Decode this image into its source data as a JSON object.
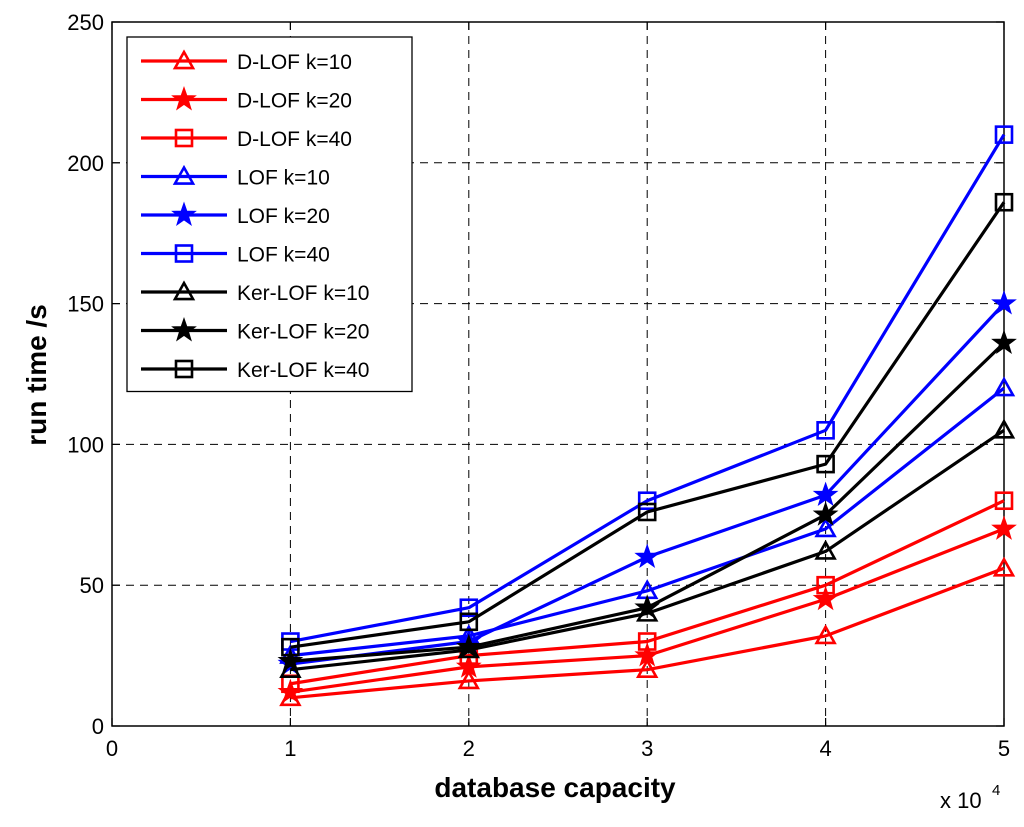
{
  "chart_data": {
    "type": "line",
    "xlabel": "database capacity",
    "ylabel": "run time /s",
    "x_multiplier_text": "x 10",
    "x_multiplier_exp": "4",
    "xlim": [
      0,
      5
    ],
    "ylim": [
      0,
      250
    ],
    "xticks": [
      0,
      1,
      2,
      3,
      4,
      5
    ],
    "yticks": [
      0,
      50,
      100,
      150,
      200,
      250
    ],
    "grid": true,
    "legend_position": "top-left",
    "x": [
      1,
      2,
      3,
      4,
      5
    ],
    "series": [
      {
        "name": "D-LOF k=10",
        "color": "#ff0000",
        "marker": "triangle",
        "values": [
          10,
          16,
          20,
          32,
          56
        ]
      },
      {
        "name": "D-LOF k=20",
        "color": "#ff0000",
        "marker": "star",
        "values": [
          12,
          21,
          25,
          45,
          70
        ]
      },
      {
        "name": "D-LOF k=40",
        "color": "#ff0000",
        "marker": "square",
        "values": [
          15,
          25,
          30,
          50,
          80
        ]
      },
      {
        "name": "LOF k=10",
        "color": "#0000ff",
        "marker": "triangle",
        "values": [
          25,
          32,
          48,
          70,
          120
        ]
      },
      {
        "name": "LOF k=20",
        "color": "#0000ff",
        "marker": "star",
        "values": [
          22,
          30,
          60,
          82,
          150
        ]
      },
      {
        "name": "LOF k=40",
        "color": "#0000ff",
        "marker": "square",
        "values": [
          30,
          42,
          80,
          105,
          210
        ]
      },
      {
        "name": "Ker-LOF k=10",
        "color": "#000000",
        "marker": "triangle",
        "values": [
          20,
          27,
          40,
          62,
          105
        ]
      },
      {
        "name": "Ker-LOF k=20",
        "color": "#000000",
        "marker": "star",
        "values": [
          23,
          28,
          42,
          75,
          136
        ]
      },
      {
        "name": "Ker-LOF k=40",
        "color": "#000000",
        "marker": "square",
        "values": [
          28,
          37,
          76,
          93,
          186
        ]
      }
    ]
  }
}
